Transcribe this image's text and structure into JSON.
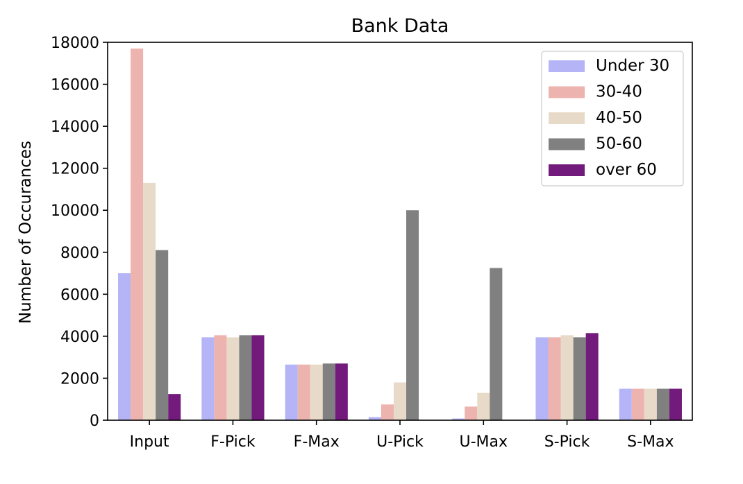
{
  "chart_data": {
    "type": "bar",
    "title": "Bank Data",
    "xlabel": "",
    "ylabel": "Number of Occurances",
    "ylim": [
      0,
      18000
    ],
    "yticks": [
      0,
      2000,
      4000,
      6000,
      8000,
      10000,
      12000,
      14000,
      16000,
      18000
    ],
    "categories": [
      "Input",
      "F-Pick",
      "F-Max",
      "U-Pick",
      "U-Max",
      "S-Pick",
      "S-Max"
    ],
    "grid": false,
    "legend_position": "top-right",
    "series": [
      {
        "name": "Under 30",
        "color": "#b4b4f6",
        "values": [
          7000,
          3950,
          2650,
          150,
          80,
          3950,
          1500
        ]
      },
      {
        "name": "30-40",
        "color": "#edb3af",
        "values": [
          17700,
          4050,
          2650,
          750,
          650,
          3950,
          1500
        ]
      },
      {
        "name": "40-50",
        "color": "#e8dac8",
        "values": [
          11300,
          3950,
          2650,
          1800,
          1300,
          4050,
          1500
        ]
      },
      {
        "name": "50-60",
        "color": "#808080",
        "values": [
          8100,
          4050,
          2700,
          10000,
          7250,
          3950,
          1500
        ]
      },
      {
        "name": "over 60",
        "color": "#731b7c",
        "values": [
          1250,
          4050,
          2700,
          0,
          0,
          4150,
          1500
        ]
      }
    ]
  }
}
